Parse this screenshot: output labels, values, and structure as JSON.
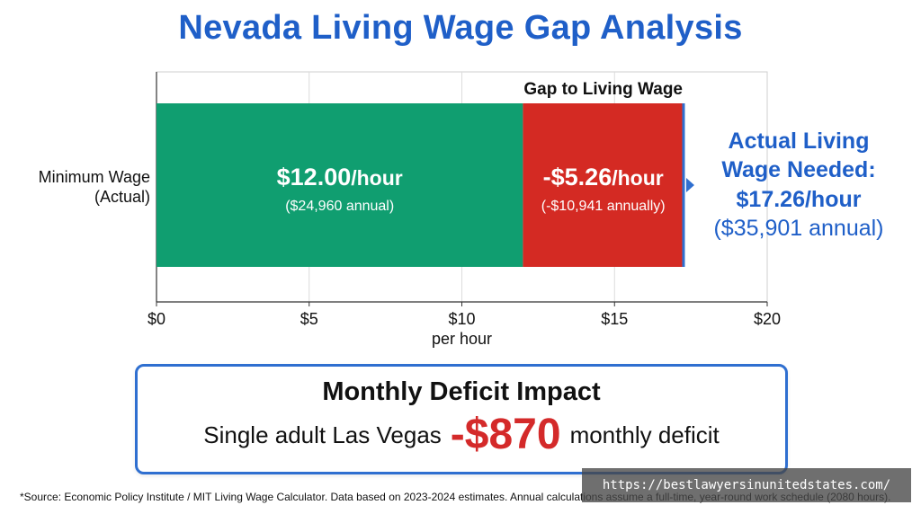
{
  "title": "Nevada Living Wage Gap Analysis",
  "chart_data": {
    "type": "bar",
    "orientation": "horizontal",
    "stacked": true,
    "categories": [
      "Minimum Wage (Actual)"
    ],
    "category_lines": [
      "Minimum Wage",
      "(Actual)"
    ],
    "series": [
      {
        "values": [
          12.0
        ],
        "color": "#109e70",
        "label_main": "$12.00/hour",
        "label_sub": "($24,960 annual)"
      },
      {
        "name": "Gap to Living Wage",
        "values": [
          5.26
        ],
        "color": "#d42a23",
        "label_main": "-$5.26/hour",
        "label_sub": "(-$10,941 annually)"
      }
    ],
    "total": 17.26,
    "annotation_lines": [
      "Actual Living",
      "Wage Needed:",
      "$17.26/hour",
      "($35,901 annual)"
    ],
    "annotation_color": "#1f5fc8",
    "xlabel": "per hour",
    "xlim": [
      0,
      20
    ],
    "xticks": [
      0,
      5,
      10,
      15,
      20
    ],
    "xtick_labels": [
      "$0",
      "$5",
      "$10",
      "$15",
      "$20"
    ],
    "grid": true
  },
  "deficit": {
    "heading": "Monthly Deficit Impact",
    "prefix": "Single adult Las Vegas",
    "amount": "-$870",
    "suffix": "monthly deficit"
  },
  "source": "*Source: Economic Policy Institute / MIT Living Wage Calculator. Data based on 2023-2024 estimates. Annual calculations assume a full-time, year-round work schedule (2080 hours).",
  "watermark": "https://bestlawyersinunitedstates.com/"
}
